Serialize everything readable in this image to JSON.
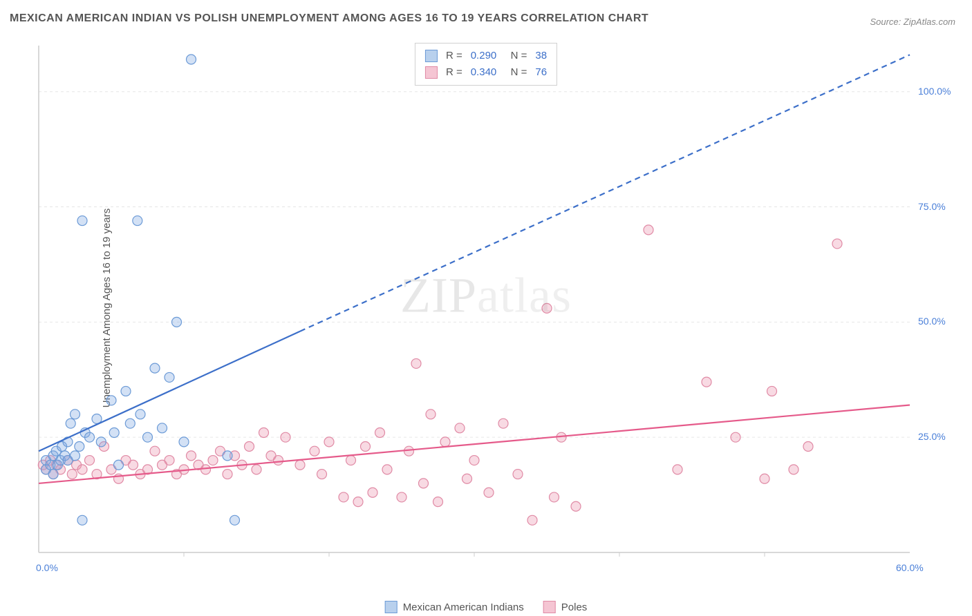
{
  "title": "MEXICAN AMERICAN INDIAN VS POLISH UNEMPLOYMENT AMONG AGES 16 TO 19 YEARS CORRELATION CHART",
  "source": "Source: ZipAtlas.com",
  "ylabel": "Unemployment Among Ages 16 to 19 years",
  "watermark": {
    "bold": "ZIP",
    "light": "atlas"
  },
  "chart": {
    "type": "scatter",
    "background_color": "#ffffff",
    "grid_color": "#e6e6e6",
    "grid_dash": "4,4",
    "xlim": [
      0,
      60
    ],
    "ylim": [
      0,
      110
    ],
    "y_ticks": [
      25,
      50,
      75,
      100
    ],
    "y_tick_labels": [
      "25.0%",
      "50.0%",
      "75.0%",
      "100.0%"
    ],
    "x_min_label": "0.0%",
    "x_max_label": "60.0%",
    "tick_color": "#4a7fd8",
    "axis_line_color": "#cccccc",
    "marker_radius": 7,
    "marker_stroke_width": 1.2,
    "series": [
      {
        "name": "Mexican American Indians",
        "color_fill": "rgba(130,170,225,0.35)",
        "color_stroke": "#6b9ad6",
        "swatch_fill": "#b8d0ed",
        "swatch_stroke": "#6b9ad6",
        "R": "0.290",
        "N": "38",
        "trend": {
          "x1": 0,
          "y1": 22,
          "x2_solid": 18,
          "y2_solid": 48,
          "x2_dash": 60,
          "y2_dash": 108,
          "stroke": "#3c6fc9",
          "width": 2.2
        },
        "points": [
          [
            0.5,
            18
          ],
          [
            0.5,
            20
          ],
          [
            0.8,
            19
          ],
          [
            1,
            21
          ],
          [
            1,
            17
          ],
          [
            1.2,
            22
          ],
          [
            1.3,
            19
          ],
          [
            1.5,
            20
          ],
          [
            1.6,
            23
          ],
          [
            1.8,
            21
          ],
          [
            2,
            24
          ],
          [
            2,
            20
          ],
          [
            2.2,
            28
          ],
          [
            2.5,
            30
          ],
          [
            2.5,
            21
          ],
          [
            2.8,
            23
          ],
          [
            3,
            7
          ],
          [
            3,
            72
          ],
          [
            3.2,
            26
          ],
          [
            3.5,
            25
          ],
          [
            4,
            29
          ],
          [
            4.3,
            24
          ],
          [
            5,
            33
          ],
          [
            5.2,
            26
          ],
          [
            5.5,
            19
          ],
          [
            6,
            35
          ],
          [
            6.3,
            28
          ],
          [
            6.8,
            72
          ],
          [
            7,
            30
          ],
          [
            7.5,
            25
          ],
          [
            8,
            40
          ],
          [
            8.5,
            27
          ],
          [
            9,
            38
          ],
          [
            9.5,
            50
          ],
          [
            10,
            24
          ],
          [
            10.5,
            107
          ],
          [
            13,
            21
          ],
          [
            13.5,
            7
          ]
        ]
      },
      {
        "name": "Poles",
        "color_fill": "rgba(235,150,175,0.35)",
        "color_stroke": "#e08aa5",
        "swatch_fill": "#f5c5d3",
        "swatch_stroke": "#e08aa5",
        "R": "0.340",
        "N": "76",
        "trend": {
          "x1": 0,
          "y1": 15,
          "x2_solid": 60,
          "y2_solid": 32,
          "x2_dash": 60,
          "y2_dash": 32,
          "stroke": "#e55a8a",
          "width": 2.2
        },
        "points": [
          [
            0.3,
            19
          ],
          [
            0.5,
            18
          ],
          [
            0.8,
            20
          ],
          [
            1,
            17
          ],
          [
            1.2,
            19
          ],
          [
            1.5,
            18
          ],
          [
            2,
            20
          ],
          [
            2.3,
            17
          ],
          [
            2.6,
            19
          ],
          [
            3,
            18
          ],
          [
            3.5,
            20
          ],
          [
            4,
            17
          ],
          [
            4.5,
            23
          ],
          [
            5,
            18
          ],
          [
            5.5,
            16
          ],
          [
            6,
            20
          ],
          [
            6.5,
            19
          ],
          [
            7,
            17
          ],
          [
            7.5,
            18
          ],
          [
            8,
            22
          ],
          [
            8.5,
            19
          ],
          [
            9,
            20
          ],
          [
            9.5,
            17
          ],
          [
            10,
            18
          ],
          [
            10.5,
            21
          ],
          [
            11,
            19
          ],
          [
            11.5,
            18
          ],
          [
            12,
            20
          ],
          [
            12.5,
            22
          ],
          [
            13,
            17
          ],
          [
            13.5,
            21
          ],
          [
            14,
            19
          ],
          [
            14.5,
            23
          ],
          [
            15,
            18
          ],
          [
            15.5,
            26
          ],
          [
            16,
            21
          ],
          [
            16.5,
            20
          ],
          [
            17,
            25
          ],
          [
            18,
            19
          ],
          [
            19,
            22
          ],
          [
            19.5,
            17
          ],
          [
            20,
            24
          ],
          [
            21,
            12
          ],
          [
            21.5,
            20
          ],
          [
            22,
            11
          ],
          [
            22.5,
            23
          ],
          [
            23,
            13
          ],
          [
            23.5,
            26
          ],
          [
            24,
            18
          ],
          [
            25,
            12
          ],
          [
            25.5,
            22
          ],
          [
            26,
            41
          ],
          [
            26.5,
            15
          ],
          [
            27,
            30
          ],
          [
            27.5,
            11
          ],
          [
            28,
            24
          ],
          [
            29,
            27
          ],
          [
            29.5,
            16
          ],
          [
            30,
            20
          ],
          [
            31,
            13
          ],
          [
            32,
            28
          ],
          [
            33,
            17
          ],
          [
            34,
            7
          ],
          [
            35,
            53
          ],
          [
            35.5,
            12
          ],
          [
            36,
            25
          ],
          [
            37,
            10
          ],
          [
            42,
            70
          ],
          [
            44,
            18
          ],
          [
            46,
            37
          ],
          [
            48,
            25
          ],
          [
            50,
            16
          ],
          [
            50.5,
            35
          ],
          [
            52,
            18
          ],
          [
            53,
            23
          ],
          [
            55,
            67
          ]
        ]
      }
    ]
  },
  "series_legend": [
    {
      "label": "Mexican American Indians"
    },
    {
      "label": "Poles"
    }
  ]
}
